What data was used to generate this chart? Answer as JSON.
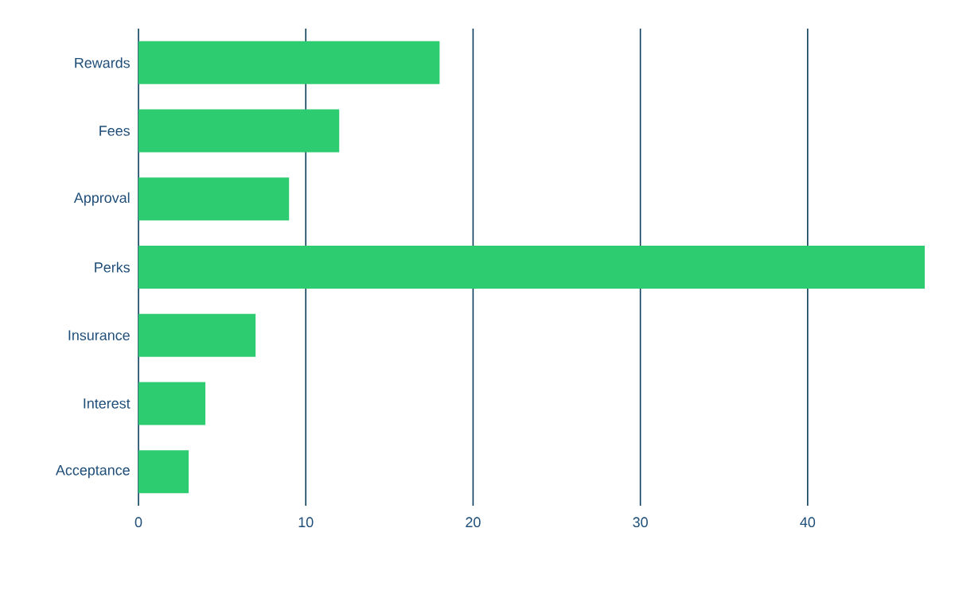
{
  "chart_data": {
    "type": "bar",
    "orientation": "horizontal",
    "categories": [
      "Rewards",
      "Fees",
      "Approval",
      "Perks",
      "Insurance",
      "Interest",
      "Acceptance"
    ],
    "values": [
      18,
      12,
      9,
      47,
      7,
      4,
      3
    ],
    "color": "#2ecc71",
    "xlim": [
      0,
      47
    ],
    "xticks": [
      0,
      10,
      20,
      30,
      40
    ],
    "grid": "x"
  }
}
